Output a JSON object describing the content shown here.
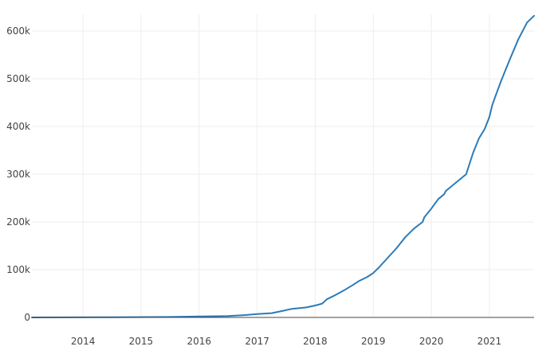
{
  "chart_data": {
    "type": "line",
    "title": "",
    "xlabel": "",
    "ylabel": "",
    "x_range": [
      2013.12,
      2021.77
    ],
    "ylim": [
      0,
      635000
    ],
    "grid": true,
    "xticks": [
      {
        "value": 2014,
        "label": "2014"
      },
      {
        "value": 2015,
        "label": "2015"
      },
      {
        "value": 2016,
        "label": "2016"
      },
      {
        "value": 2017,
        "label": "2017"
      },
      {
        "value": 2018,
        "label": "2018"
      },
      {
        "value": 2019,
        "label": "2019"
      },
      {
        "value": 2020,
        "label": "2020"
      },
      {
        "value": 2021,
        "label": "2021"
      }
    ],
    "yticks": [
      {
        "value": 0,
        "label": "0"
      },
      {
        "value": 100000,
        "label": "100k"
      },
      {
        "value": 200000,
        "label": "200k"
      },
      {
        "value": 300000,
        "label": "300k"
      },
      {
        "value": 400000,
        "label": "400k"
      },
      {
        "value": 500000,
        "label": "500k"
      },
      {
        "value": 600000,
        "label": "600k"
      }
    ],
    "colors": {
      "line": "#2b7bb9",
      "grid": "#eeeeee",
      "zero_line": "#444444",
      "tick_text": "#444444"
    },
    "series": [
      {
        "x": [
          2013.12,
          2014.5,
          2015.5,
          2016.0,
          2016.5,
          2016.8,
          2017.0,
          2017.25,
          2017.45,
          2017.6,
          2017.85,
          2018.0,
          2018.12,
          2018.2,
          2018.35,
          2018.5,
          2018.65,
          2018.75,
          2018.9,
          2019.0,
          2019.1,
          2019.25,
          2019.4,
          2019.55,
          2019.7,
          2019.85,
          2019.88,
          2020.0,
          2020.12,
          2020.22,
          2020.25,
          2020.4,
          2020.6,
          2020.72,
          2020.82,
          2020.92,
          2021.0,
          2021.05,
          2021.1,
          2021.2,
          2021.35,
          2021.5,
          2021.65,
          2021.77
        ],
        "y": [
          0,
          500,
          1000,
          2000,
          3000,
          5000,
          7000,
          9000,
          14000,
          18000,
          21000,
          25000,
          29000,
          38000,
          47000,
          57000,
          68000,
          76000,
          85000,
          93000,
          105000,
          125000,
          145000,
          168000,
          186000,
          200000,
          210000,
          228000,
          248000,
          258000,
          265000,
          280000,
          300000,
          345000,
          375000,
          395000,
          420000,
          445000,
          462000,
          495000,
          540000,
          583000,
          618000,
          632000
        ]
      }
    ]
  }
}
